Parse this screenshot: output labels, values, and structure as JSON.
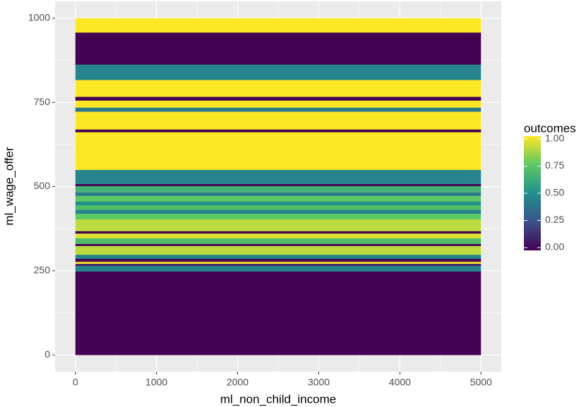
{
  "chart_data": {
    "type": "heatmap",
    "x_label": "ml_non_child_income",
    "y_label": "ml_wage_offer",
    "legend_title": "outcomes",
    "x_bins": [
      0,
      5000
    ],
    "y_bins": [
      0,
      248,
      265,
      271,
      277,
      286,
      298,
      324,
      330,
      347,
      361,
      368,
      403,
      420,
      431,
      445,
      456,
      473,
      483,
      502,
      508,
      550,
      662,
      670,
      723,
      735,
      756,
      767,
      817,
      863,
      958,
      1000
    ],
    "values": [
      0,
      0.45,
      0.1,
      1,
      0,
      0.45,
      0.9,
      0,
      0.7,
      0.95,
      0,
      0.9,
      0.75,
      0.45,
      0.7,
      0.5,
      0.75,
      0.4,
      0.65,
      0,
      0.45,
      1,
      0,
      1,
      0.4,
      1,
      0,
      1,
      0.45,
      0,
      1
    ],
    "xlim": [
      -250,
      5250
    ],
    "xticks": [
      0,
      1000,
      2000,
      3000,
      4000,
      5000
    ],
    "ylim": [
      -50,
      1050
    ],
    "yticks": [
      0,
      250,
      500,
      750,
      1000
    ],
    "color_lim": [
      0,
      1
    ],
    "color_ticks": [
      {
        "value": 0,
        "label": "0.00"
      },
      {
        "value": 0.25,
        "label": "0.25"
      },
      {
        "value": 0.5,
        "label": "0.50"
      },
      {
        "value": 0.75,
        "label": "0.75"
      },
      {
        "value": 1,
        "label": "1.00"
      }
    ],
    "colormap": [
      "#440154",
      "#3b528b",
      "#21908c",
      "#5dc863",
      "#fde725"
    ],
    "grid": true,
    "legend": "right"
  }
}
